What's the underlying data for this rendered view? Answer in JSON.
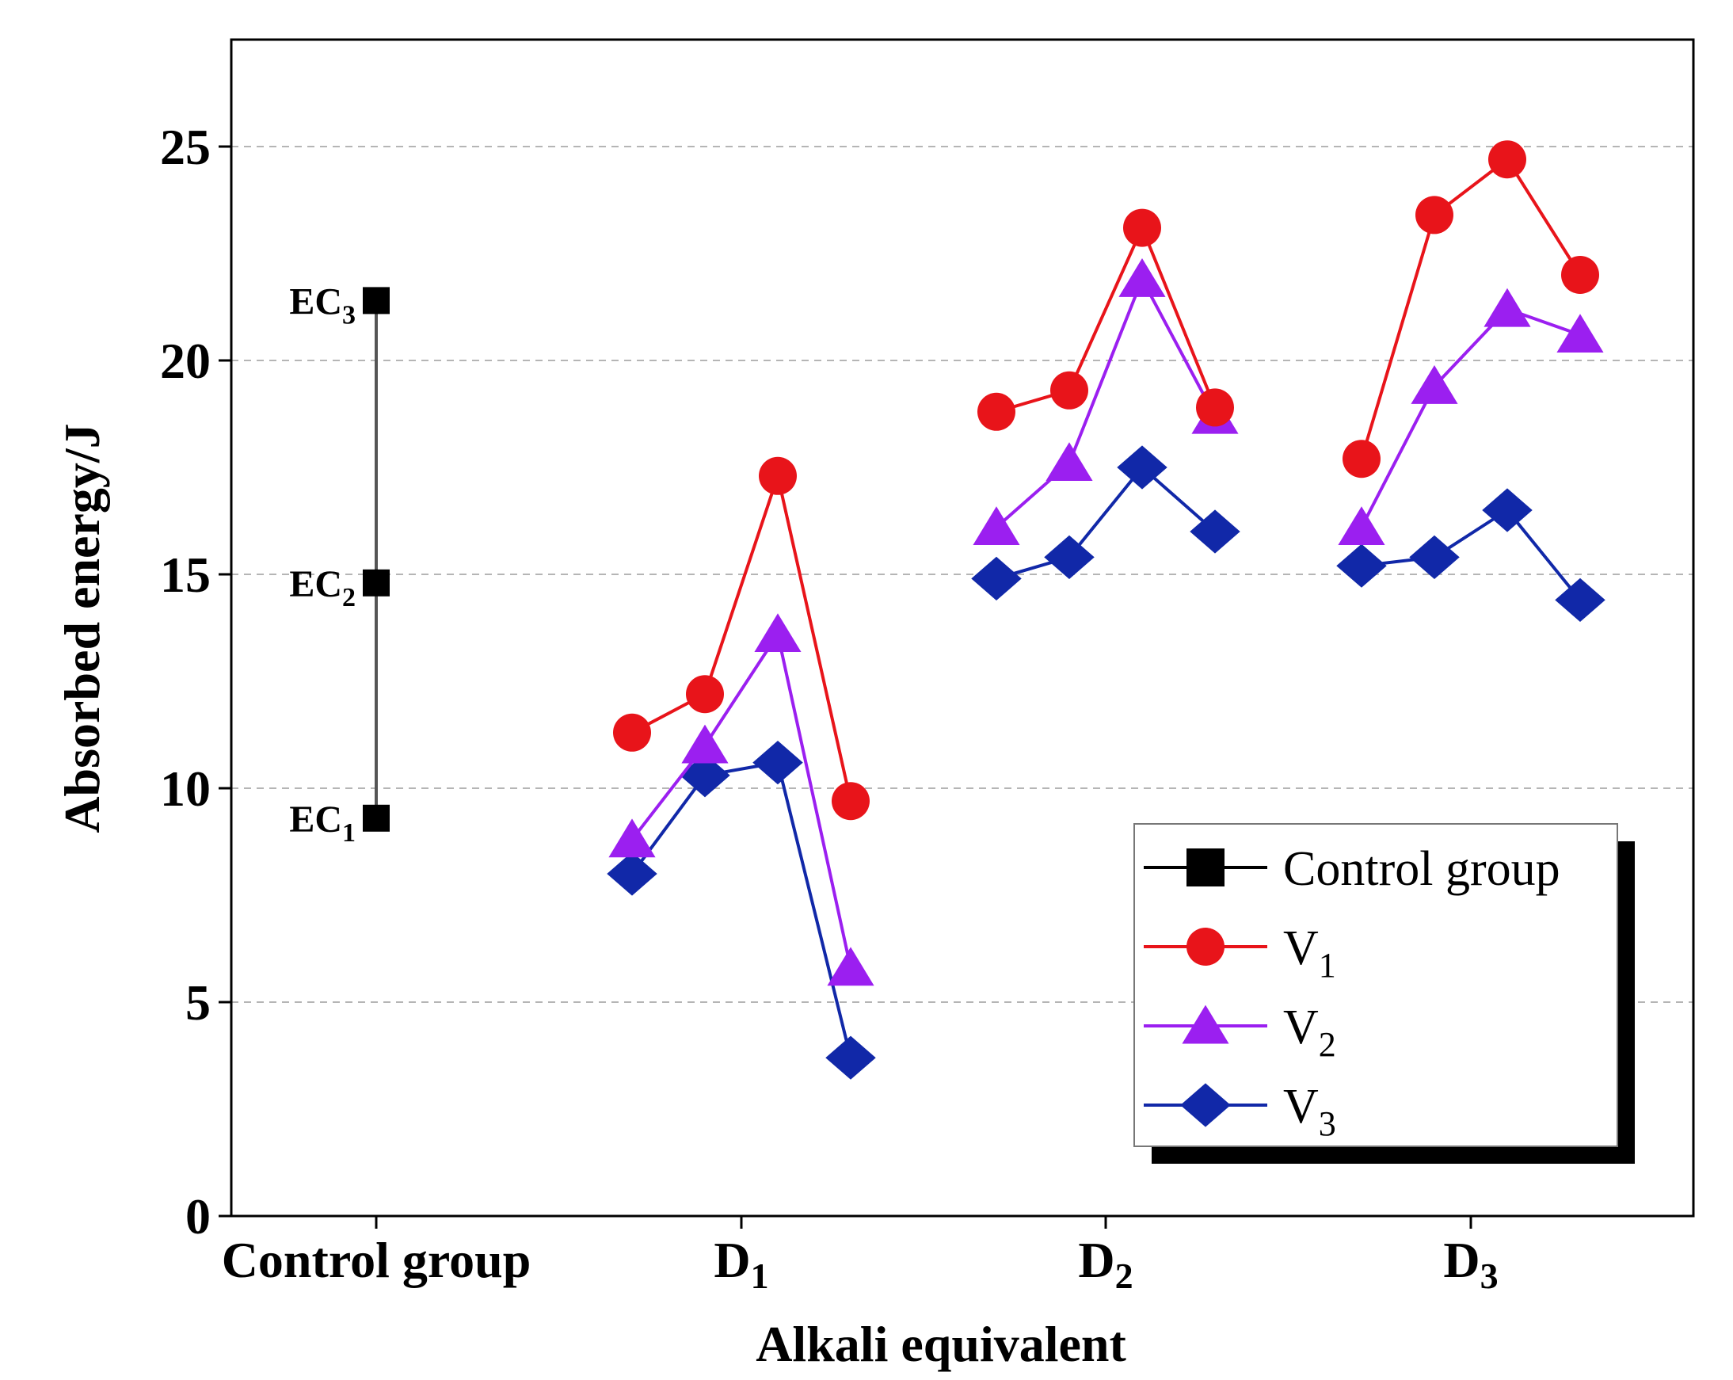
{
  "chart_data": {
    "type": "line",
    "title": "",
    "xlabel": "Alkali equivalent",
    "ylabel": "Absorbed energy/J",
    "ylim": [
      0,
      27.5
    ],
    "yticks": [
      0,
      5,
      10,
      15,
      20,
      25
    ],
    "grid": "horizontal dashed",
    "categories": [
      {
        "main": "Control group",
        "sub": ""
      },
      {
        "main": "D",
        "sub": "1"
      },
      {
        "main": "D",
        "sub": "2"
      },
      {
        "main": "D",
        "sub": "3"
      }
    ],
    "control_group": {
      "name": "Control group",
      "color": "#000000",
      "points": [
        {
          "main": "EC",
          "sub": "1",
          "value": 9.3
        },
        {
          "main": "EC",
          "sub": "2",
          "value": 14.8
        },
        {
          "main": "EC",
          "sub": "3",
          "value": 21.4
        }
      ]
    },
    "series": [
      {
        "name": "V",
        "sub": "1",
        "marker": "circle",
        "color": "#e8141a",
        "groups": [
          [
            11.3,
            12.2,
            17.3,
            9.7
          ],
          [
            18.8,
            19.3,
            23.1,
            18.9
          ],
          [
            17.7,
            23.4,
            24.7,
            22.0
          ]
        ]
      },
      {
        "name": "V",
        "sub": "2",
        "marker": "triangle",
        "color": "#9b1ff0",
        "groups": [
          [
            8.8,
            11.0,
            13.6,
            5.8
          ],
          [
            16.1,
            17.6,
            21.9,
            18.7
          ],
          [
            16.1,
            19.4,
            21.2,
            20.6
          ]
        ]
      },
      {
        "name": "V",
        "sub": "3",
        "marker": "diamond",
        "color": "#1128a8",
        "groups": [
          [
            8.0,
            10.3,
            10.6,
            3.7
          ],
          [
            14.9,
            15.4,
            17.5,
            16.0
          ],
          [
            15.2,
            15.4,
            16.5,
            14.4
          ]
        ]
      }
    ],
    "legend": {
      "placement": "bottom-right",
      "entries": [
        {
          "main": "Control group",
          "sub": "",
          "marker": "square",
          "color": "#000000"
        },
        {
          "main": "V",
          "sub": "1",
          "marker": "circle",
          "color": "#e8141a"
        },
        {
          "main": "V",
          "sub": "2",
          "marker": "triangle",
          "color": "#9b1ff0"
        },
        {
          "main": "V",
          "sub": "3",
          "marker": "diamond",
          "color": "#1128a8"
        }
      ]
    }
  }
}
